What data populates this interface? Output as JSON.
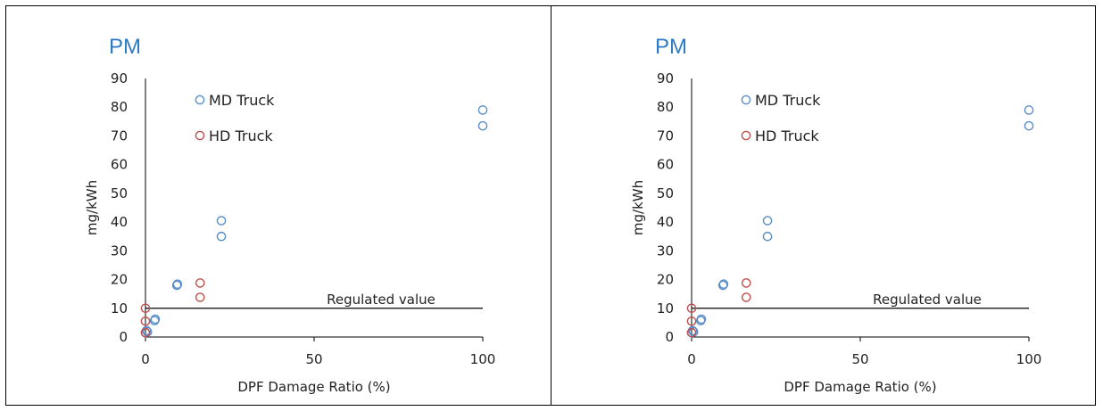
{
  "chart_data": [
    {
      "type": "scatter",
      "title": "PM",
      "xlabel": "DPF Damage Ratio (%)",
      "ylabel": "mg/kWh",
      "xlim": [
        0,
        100
      ],
      "ylim": [
        0,
        90
      ],
      "xticks": [
        0,
        50,
        100
      ],
      "yticks": [
        0,
        10,
        20,
        30,
        40,
        50,
        60,
        70,
        80,
        90
      ],
      "grid": false,
      "legend_position": "top-left",
      "series": [
        {
          "name": "MD Truck",
          "color": "#5b8ec9",
          "marker": "open-circle",
          "points": [
            [
              0,
              1.5
            ],
            [
              0.3,
              2.2
            ],
            [
              0.6,
              1.8
            ],
            [
              2.7,
              5.7
            ],
            [
              2.9,
              6.2
            ],
            [
              9.3,
              18.0
            ],
            [
              9.5,
              18.4
            ],
            [
              22.5,
              40.5
            ],
            [
              22.5,
              35.0
            ],
            [
              100,
              79.0
            ],
            [
              100,
              73.5
            ]
          ]
        },
        {
          "name": "HD Truck",
          "color": "#c0504d",
          "marker": "open-circle",
          "points": [
            [
              0,
              10.0
            ],
            [
              0,
              5.5
            ],
            [
              0,
              1.5
            ],
            [
              16.2,
              18.8
            ],
            [
              16.2,
              13.8
            ]
          ]
        }
      ],
      "reference_line": {
        "label": "Regulated value",
        "y": 10
      }
    },
    {
      "type": "scatter",
      "title": "PM",
      "xlabel": "DPF Damage Ratio (%)",
      "ylabel": "mg/kWh",
      "xlim": [
        0,
        100
      ],
      "ylim": [
        0,
        90
      ],
      "xticks": [
        0,
        50,
        100
      ],
      "yticks": [
        0,
        10,
        20,
        30,
        40,
        50,
        60,
        70,
        80,
        90
      ],
      "grid": false,
      "legend_position": "top-left",
      "series": [
        {
          "name": "MD Truck",
          "color": "#5b8ec9",
          "marker": "open-circle",
          "points": [
            [
              0,
              1.5
            ],
            [
              0.3,
              2.2
            ],
            [
              0.6,
              1.8
            ],
            [
              2.7,
              5.7
            ],
            [
              2.9,
              6.2
            ],
            [
              9.3,
              18.0
            ],
            [
              9.5,
              18.4
            ],
            [
              22.5,
              40.5
            ],
            [
              22.5,
              35.0
            ],
            [
              100,
              79.0
            ],
            [
              100,
              73.5
            ]
          ]
        },
        {
          "name": "HD Truck",
          "color": "#c0504d",
          "marker": "open-circle",
          "points": [
            [
              0,
              10.0
            ],
            [
              0,
              5.5
            ],
            [
              0,
              1.5
            ],
            [
              16.2,
              18.8
            ],
            [
              16.2,
              13.8
            ]
          ]
        }
      ],
      "reference_line": {
        "label": "Regulated value",
        "y": 10
      }
    }
  ]
}
